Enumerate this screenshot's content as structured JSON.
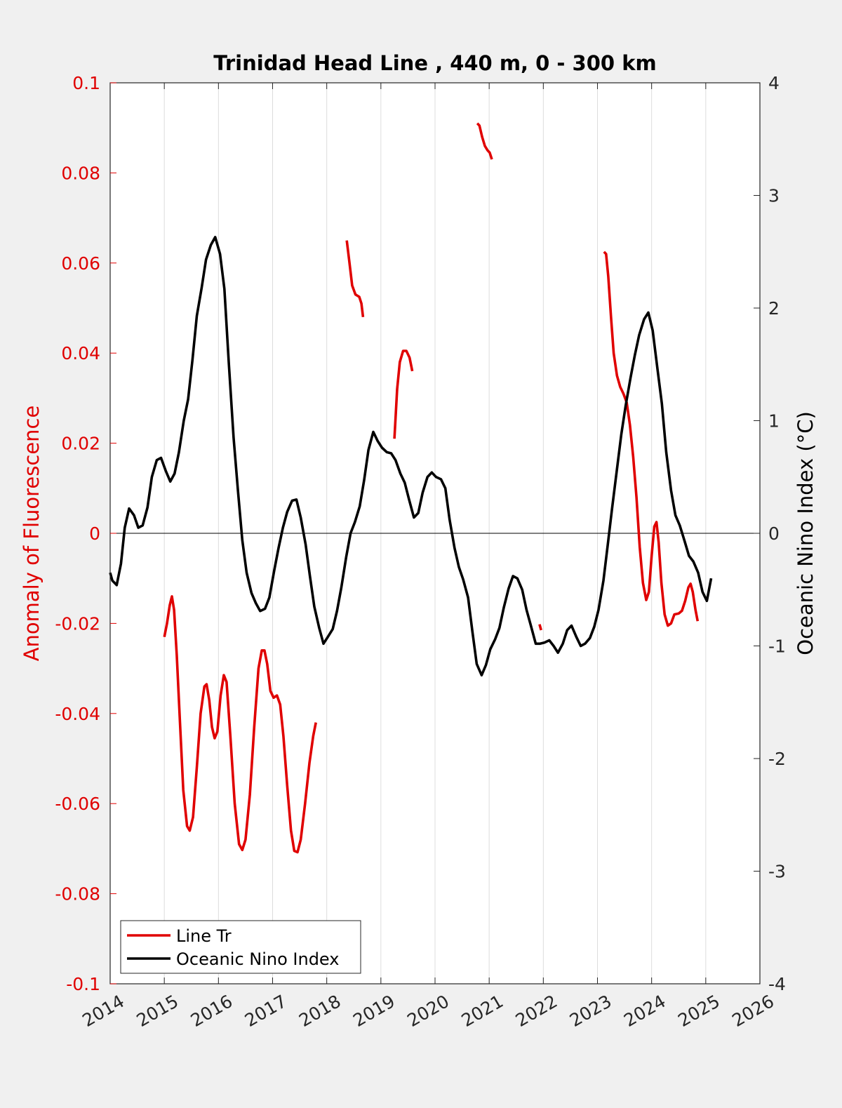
{
  "chart_data": {
    "type": "line",
    "title": "Trinidad Head Line , 440 m, 0 - 300 km",
    "ylabel_left": "Anomaly of Fluorescence",
    "ylabel_right": "Oceanic Nino Index (°C)",
    "xlim": [
      2014,
      2026
    ],
    "ylim_left": [
      -0.1,
      0.1
    ],
    "ylim_right": [
      -4,
      4
    ],
    "x_ticks": [
      "2014",
      "2015",
      "2016",
      "2017",
      "2018",
      "2019",
      "2020",
      "2021",
      "2022",
      "2023",
      "2024",
      "2025",
      "2026"
    ],
    "y_left_ticks": [
      "0.1",
      "0.08",
      "0.06",
      "0.04",
      "0.02",
      "0",
      "-0.02",
      "-0.04",
      "-0.06",
      "-0.08",
      "-0.1"
    ],
    "y_right_ticks": [
      "4",
      "3",
      "2",
      "1",
      "0",
      "-1",
      "-2",
      "-3",
      "-4"
    ],
    "grid": "vertical",
    "zero_line": true,
    "legend_position": "bottom-left",
    "colors": {
      "left_axis": "#e00000",
      "line_tr": "#e00000",
      "oni": "#000000",
      "grid": "#dcdcdc"
    },
    "series": [
      {
        "name": "Line Tr",
        "axis": "left",
        "segments": [
          [
            [
              2015.0,
              -0.023
            ],
            [
              2015.05,
              -0.02
            ],
            [
              2015.1,
              -0.016
            ],
            [
              2015.14,
              -0.014
            ],
            [
              2015.18,
              -0.017
            ],
            [
              2015.23,
              -0.027
            ],
            [
              2015.29,
              -0.042
            ],
            [
              2015.35,
              -0.057
            ],
            [
              2015.42,
              -0.065
            ],
            [
              2015.47,
              -0.066
            ],
            [
              2015.53,
              -0.063
            ],
            [
              2015.6,
              -0.052
            ],
            [
              2015.67,
              -0.04
            ],
            [
              2015.74,
              -0.034
            ],
            [
              2015.78,
              -0.0335
            ],
            [
              2015.83,
              -0.037
            ],
            [
              2015.88,
              -0.043
            ],
            [
              2015.93,
              -0.0455
            ],
            [
              2015.98,
              -0.044
            ],
            [
              2016.04,
              -0.036
            ],
            [
              2016.1,
              -0.0315
            ],
            [
              2016.15,
              -0.033
            ],
            [
              2016.22,
              -0.045
            ],
            [
              2016.3,
              -0.06
            ],
            [
              2016.38,
              -0.069
            ],
            [
              2016.44,
              -0.0703
            ],
            [
              2016.5,
              -0.068
            ],
            [
              2016.58,
              -0.058
            ],
            [
              2016.66,
              -0.043
            ],
            [
              2016.74,
              -0.03
            ],
            [
              2016.8,
              -0.026
            ],
            [
              2016.85,
              -0.026
            ],
            [
              2016.9,
              -0.029
            ],
            [
              2016.96,
              -0.035
            ],
            [
              2017.02,
              -0.0365
            ],
            [
              2017.08,
              -0.036
            ],
            [
              2017.14,
              -0.038
            ],
            [
              2017.2,
              -0.045
            ],
            [
              2017.27,
              -0.056
            ],
            [
              2017.34,
              -0.066
            ],
            [
              2017.4,
              -0.0705
            ],
            [
              2017.46,
              -0.0708
            ],
            [
              2017.52,
              -0.068
            ],
            [
              2017.6,
              -0.06
            ],
            [
              2017.68,
              -0.051
            ],
            [
              2017.75,
              -0.045
            ],
            [
              2017.8,
              -0.042
            ]
          ],
          [
            [
              2018.37,
              0.065
            ],
            [
              2018.42,
              0.06
            ],
            [
              2018.47,
              0.055
            ],
            [
              2018.53,
              0.053
            ],
            [
              2018.6,
              0.0525
            ],
            [
              2018.64,
              0.051
            ],
            [
              2018.67,
              0.048
            ]
          ],
          [
            [
              2019.25,
              0.021
            ],
            [
              2019.3,
              0.032
            ],
            [
              2019.35,
              0.038
            ],
            [
              2019.41,
              0.0405
            ],
            [
              2019.47,
              0.0405
            ],
            [
              2019.53,
              0.039
            ],
            [
              2019.58,
              0.036
            ]
          ],
          [
            [
              2020.78,
              0.091
            ],
            [
              2020.82,
              0.0905
            ],
            [
              2020.87,
              0.088
            ],
            [
              2020.92,
              0.086
            ],
            [
              2020.97,
              0.085
            ],
            [
              2021.01,
              0.0845
            ],
            [
              2021.05,
              0.083
            ]
          ],
          [
            [
              2021.93,
              -0.0202
            ],
            [
              2021.96,
              -0.0215
            ]
          ],
          [
            [
              2023.12,
              0.0625
            ],
            [
              2023.16,
              0.062
            ],
            [
              2023.2,
              0.057
            ],
            [
              2023.25,
              0.048
            ],
            [
              2023.3,
              0.04
            ],
            [
              2023.36,
              0.035
            ],
            [
              2023.42,
              0.0325
            ],
            [
              2023.48,
              0.031
            ],
            [
              2023.54,
              0.029
            ],
            [
              2023.6,
              0.024
            ],
            [
              2023.66,
              0.017
            ],
            [
              2023.72,
              0.008
            ],
            [
              2023.78,
              -0.003
            ],
            [
              2023.84,
              -0.011
            ],
            [
              2023.9,
              -0.0148
            ],
            [
              2023.95,
              -0.013
            ],
            [
              2024.0,
              -0.005
            ],
            [
              2024.05,
              0.0015
            ],
            [
              2024.09,
              0.0025
            ],
            [
              2024.13,
              -0.002
            ],
            [
              2024.18,
              -0.011
            ],
            [
              2024.24,
              -0.018
            ],
            [
              2024.3,
              -0.0205
            ],
            [
              2024.36,
              -0.02
            ],
            [
              2024.42,
              -0.018
            ],
            [
              2024.5,
              -0.0178
            ],
            [
              2024.56,
              -0.0172
            ],
            [
              2024.62,
              -0.015
            ],
            [
              2024.68,
              -0.012
            ],
            [
              2024.72,
              -0.0112
            ],
            [
              2024.76,
              -0.013
            ],
            [
              2024.81,
              -0.017
            ],
            [
              2024.85,
              -0.0195
            ]
          ]
        ]
      },
      {
        "name": "Oceanic Nino Index",
        "axis": "right",
        "x": [
          2014.0,
          2014.04,
          2014.12,
          2014.2,
          2014.27,
          2014.35,
          2014.44,
          2014.52,
          2014.6,
          2014.69,
          2014.77,
          2014.86,
          2014.94,
          2015.03,
          2015.11,
          2015.19,
          2015.27,
          2015.36,
          2015.44,
          2015.52,
          2015.6,
          2015.69,
          2015.77,
          2015.86,
          2015.94,
          2016.03,
          2016.11,
          2016.19,
          2016.28,
          2016.36,
          2016.44,
          2016.52,
          2016.61,
          2016.69,
          2016.77,
          2016.86,
          2016.94,
          2017.03,
          2017.11,
          2017.19,
          2017.27,
          2017.36,
          2017.44,
          2017.52,
          2017.61,
          2017.69,
          2017.77,
          2017.86,
          2017.94,
          2018.02,
          2018.11,
          2018.19,
          2018.27,
          2018.36,
          2018.44,
          2018.52,
          2018.61,
          2018.69,
          2018.77,
          2018.86,
          2018.94,
          2019.02,
          2019.11,
          2019.19,
          2019.27,
          2019.36,
          2019.44,
          2019.52,
          2019.61,
          2019.69,
          2019.77,
          2019.86,
          2019.94,
          2020.02,
          2020.11,
          2020.19,
          2020.27,
          2020.36,
          2020.44,
          2020.52,
          2020.61,
          2020.69,
          2020.77,
          2020.86,
          2020.94,
          2021.02,
          2021.11,
          2021.19,
          2021.27,
          2021.36,
          2021.44,
          2021.52,
          2021.61,
          2021.69,
          2021.77,
          2021.86,
          2021.94,
          2022.02,
          2022.11,
          2022.19,
          2022.27,
          2022.36,
          2022.44,
          2022.52,
          2022.61,
          2022.69,
          2022.77,
          2022.86,
          2022.94,
          2023.02,
          2023.11,
          2023.19,
          2023.27,
          2023.36,
          2023.44,
          2023.52,
          2023.61,
          2023.69,
          2023.77,
          2023.86,
          2023.94,
          2024.02,
          2024.11,
          2024.19,
          2024.27,
          2024.36,
          2024.44,
          2024.52,
          2024.61,
          2024.69,
          2024.77,
          2024.86,
          2024.94,
          2025.02,
          2025.1
        ],
        "y": [
          -0.35,
          -0.42,
          -0.46,
          -0.27,
          0.05,
          0.22,
          0.16,
          0.05,
          0.07,
          0.23,
          0.5,
          0.65,
          0.67,
          0.55,
          0.46,
          0.53,
          0.72,
          1.0,
          1.19,
          1.54,
          1.93,
          2.18,
          2.43,
          2.56,
          2.63,
          2.48,
          2.17,
          1.52,
          0.85,
          0.38,
          -0.06,
          -0.35,
          -0.53,
          -0.62,
          -0.69,
          -0.67,
          -0.57,
          -0.33,
          -0.13,
          0.05,
          0.19,
          0.29,
          0.3,
          0.14,
          -0.1,
          -0.38,
          -0.65,
          -0.84,
          -0.98,
          -0.92,
          -0.85,
          -0.69,
          -0.48,
          -0.21,
          0.0,
          0.1,
          0.24,
          0.47,
          0.74,
          0.9,
          0.82,
          0.76,
          0.72,
          0.71,
          0.65,
          0.53,
          0.45,
          0.3,
          0.14,
          0.18,
          0.36,
          0.5,
          0.54,
          0.5,
          0.48,
          0.4,
          0.12,
          -0.13,
          -0.3,
          -0.41,
          -0.57,
          -0.87,
          -1.16,
          -1.26,
          -1.17,
          -1.03,
          -0.94,
          -0.84,
          -0.66,
          -0.49,
          -0.38,
          -0.4,
          -0.5,
          -0.68,
          -0.82,
          -0.98,
          -0.98,
          -0.97,
          -0.95,
          -1.0,
          -1.06,
          -0.98,
          -0.86,
          -0.82,
          -0.92,
          -1.0,
          -0.98,
          -0.93,
          -0.83,
          -0.68,
          -0.42,
          -0.1,
          0.22,
          0.57,
          0.88,
          1.13,
          1.38,
          1.58,
          1.76,
          1.9,
          1.96,
          1.8,
          1.45,
          1.15,
          0.72,
          0.38,
          0.16,
          0.07,
          -0.07,
          -0.2,
          -0.25,
          -0.35,
          -0.52,
          -0.6,
          -0.4
        ]
      }
    ]
  }
}
